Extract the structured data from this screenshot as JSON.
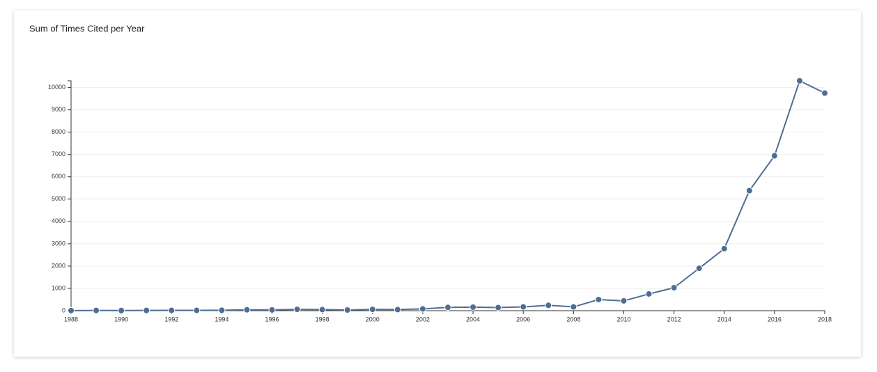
{
  "chart_data": {
    "type": "line",
    "title": "Sum of Times Cited per Year",
    "x": [
      1988,
      1989,
      1990,
      1991,
      1992,
      1993,
      1994,
      1995,
      1996,
      1997,
      1998,
      1999,
      2000,
      2001,
      2002,
      2003,
      2004,
      2005,
      2006,
      2007,
      2008,
      2009,
      2010,
      2011,
      2012,
      2013,
      2014,
      2015,
      2016,
      2017,
      2018
    ],
    "series": [
      {
        "color": "#4e6d92",
        "values": [
          5,
          10,
          8,
          12,
          15,
          15,
          20,
          40,
          35,
          60,
          50,
          30,
          60,
          50,
          80,
          150,
          160,
          140,
          170,
          240,
          170,
          500,
          440,
          750,
          1030,
          1900,
          2780,
          5380,
          6940,
          10300,
          9750
        ]
      }
    ],
    "xlim": [
      1988,
      2018
    ],
    "xticks": [
      1988,
      1990,
      1992,
      1994,
      1996,
      1998,
      2000,
      2002,
      2004,
      2006,
      2008,
      2010,
      2012,
      2014,
      2016,
      2018
    ],
    "ylim": [
      0,
      10300
    ],
    "yticks": [
      0,
      1000,
      2000,
      3000,
      4000,
      5000,
      6000,
      7000,
      8000,
      9000,
      10000
    ],
    "grid": true
  }
}
